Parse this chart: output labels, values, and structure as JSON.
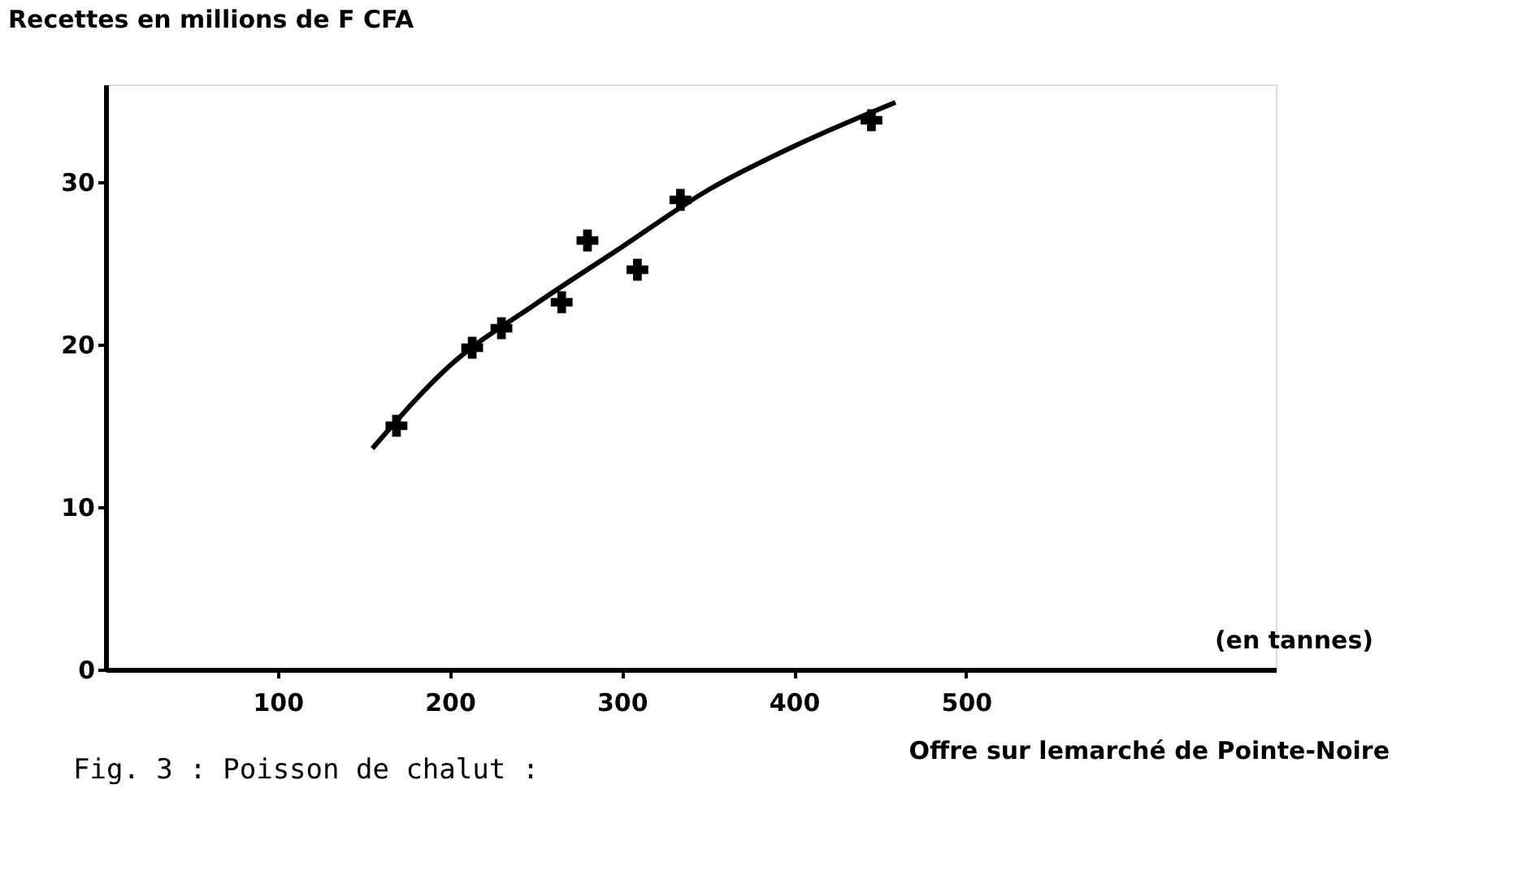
{
  "chart_data": {
    "type": "scatter",
    "ylabel": "Recettes en millions de F CFA",
    "xlabel": "Offre sur lemarché de Pointe-Noire",
    "annotations": [
      "(en tannes)",
      "Fig. 3 : Poisson de chalut :"
    ],
    "series": [
      {
        "type": "scatter",
        "color": "#000000",
        "marker": "cross",
        "x": [
          169,
          213,
          230,
          265,
          280,
          309,
          334,
          445
        ],
        "values": [
          15,
          19.8,
          21,
          22.6,
          26.4,
          24.6,
          28.9,
          33.8
        ]
      },
      {
        "type": "line",
        "color": "#000000",
        "marker": "none",
        "x": [
          155,
          200,
          250,
          300,
          350,
          400,
          459
        ],
        "values": [
          13.6,
          18.7,
          22.5,
          26,
          29.5,
          32.2,
          34.9
        ]
      }
    ],
    "xlim": [
      0,
      680
    ],
    "ylim": [
      0,
      36
    ],
    "xticks": [
      100,
      200,
      300,
      400,
      500
    ],
    "yticks": [
      0,
      10,
      20,
      30
    ],
    "grid": false
  }
}
